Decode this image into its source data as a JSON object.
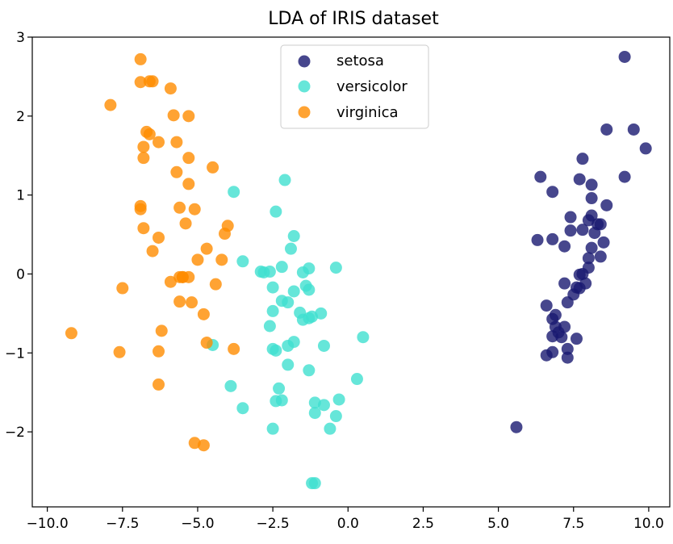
{
  "chart_data": {
    "type": "scatter",
    "title": "LDA of IRIS dataset",
    "xlabel": "",
    "ylabel": "",
    "xlim": [
      -10.5,
      10.7
    ],
    "ylim": [
      -2.95,
      3.0
    ],
    "xticks": [
      -10.0,
      -7.5,
      -5.0,
      -2.5,
      0.0,
      2.5,
      5.0,
      7.5,
      10.0
    ],
    "xtick_labels": [
      "−10.0",
      "−7.5",
      "−5.0",
      "−2.5",
      "0.0",
      "2.5",
      "5.0",
      "7.5",
      "10.0"
    ],
    "yticks": [
      -2,
      -1,
      0,
      1,
      2,
      3
    ],
    "ytick_labels": [
      "−2",
      "−1",
      "0",
      "1",
      "2",
      "3"
    ],
    "grid": false,
    "legend_position": "upper-center",
    "series": [
      {
        "name": "setosa",
        "color": "#191970",
        "points": [
          [
            9.2,
            2.75
          ],
          [
            8.6,
            1.83
          ],
          [
            9.5,
            1.83
          ],
          [
            9.9,
            1.59
          ],
          [
            9.2,
            1.23
          ],
          [
            7.8,
            1.46
          ],
          [
            6.4,
            1.23
          ],
          [
            7.7,
            1.2
          ],
          [
            8.1,
            1.13
          ],
          [
            6.8,
            1.04
          ],
          [
            8.1,
            0.96
          ],
          [
            8.6,
            0.87
          ],
          [
            7.4,
            0.72
          ],
          [
            8.0,
            0.68
          ],
          [
            8.1,
            0.74
          ],
          [
            8.3,
            0.63
          ],
          [
            8.4,
            0.63
          ],
          [
            7.8,
            0.56
          ],
          [
            8.2,
            0.52
          ],
          [
            7.4,
            0.55
          ],
          [
            6.3,
            0.43
          ],
          [
            6.8,
            0.44
          ],
          [
            7.2,
            0.35
          ],
          [
            8.5,
            0.4
          ],
          [
            8.1,
            0.33
          ],
          [
            8.0,
            0.2
          ],
          [
            8.4,
            0.22
          ],
          [
            8.0,
            0.08
          ],
          [
            7.7,
            -0.01
          ],
          [
            7.8,
            0.0
          ],
          [
            7.2,
            -0.12
          ],
          [
            7.6,
            -0.17
          ],
          [
            7.9,
            -0.12
          ],
          [
            7.5,
            -0.26
          ],
          [
            7.7,
            -0.18
          ],
          [
            7.3,
            -0.36
          ],
          [
            6.6,
            -0.4
          ],
          [
            6.9,
            -0.52
          ],
          [
            6.8,
            -0.57
          ],
          [
            6.9,
            -0.67
          ],
          [
            7.2,
            -0.67
          ],
          [
            7.0,
            -0.74
          ],
          [
            6.8,
            -0.79
          ],
          [
            7.6,
            -0.82
          ],
          [
            7.1,
            -0.8
          ],
          [
            7.3,
            -0.95
          ],
          [
            6.8,
            -0.99
          ],
          [
            6.6,
            -1.03
          ],
          [
            7.3,
            -1.06
          ],
          [
            5.6,
            -1.94
          ]
        ]
      },
      {
        "name": "versicolor",
        "color": "#40E0D0",
        "points": [
          [
            -2.1,
            1.19
          ],
          [
            -3.8,
            1.04
          ],
          [
            -2.4,
            0.79
          ],
          [
            -1.8,
            0.48
          ],
          [
            -1.9,
            0.32
          ],
          [
            -3.5,
            0.16
          ],
          [
            -2.8,
            0.02
          ],
          [
            -2.6,
            0.03
          ],
          [
            -2.2,
            0.09
          ],
          [
            -1.5,
            0.02
          ],
          [
            -1.3,
            0.07
          ],
          [
            -0.4,
            0.08
          ],
          [
            -2.5,
            -0.17
          ],
          [
            -1.8,
            -0.22
          ],
          [
            -1.4,
            -0.15
          ],
          [
            -1.3,
            -0.2
          ],
          [
            -2.2,
            -0.34
          ],
          [
            -2.0,
            -0.36
          ],
          [
            -2.5,
            -0.47
          ],
          [
            -1.6,
            -0.49
          ],
          [
            -1.5,
            -0.58
          ],
          [
            -1.3,
            -0.56
          ],
          [
            -1.2,
            -0.54
          ],
          [
            -0.9,
            -0.5
          ],
          [
            -2.6,
            -0.66
          ],
          [
            0.5,
            -0.8
          ],
          [
            -2.5,
            -0.95
          ],
          [
            -2.4,
            -0.97
          ],
          [
            -2.0,
            -0.91
          ],
          [
            -1.8,
            -0.86
          ],
          [
            -0.8,
            -0.91
          ],
          [
            -2.0,
            -1.15
          ],
          [
            -1.3,
            -1.22
          ],
          [
            -2.3,
            -1.45
          ],
          [
            0.3,
            -1.33
          ],
          [
            -3.9,
            -1.42
          ],
          [
            -2.2,
            -1.6
          ],
          [
            -2.4,
            -1.61
          ],
          [
            -1.1,
            -1.63
          ],
          [
            -0.8,
            -1.66
          ],
          [
            -0.3,
            -1.59
          ],
          [
            -3.5,
            -1.7
          ],
          [
            -1.1,
            -1.76
          ],
          [
            -0.4,
            -1.8
          ],
          [
            -2.5,
            -1.96
          ],
          [
            -0.6,
            -1.96
          ],
          [
            -1.2,
            -2.65
          ],
          [
            -1.1,
            -2.65
          ],
          [
            -4.5,
            -0.9
          ],
          [
            -2.9,
            0.03
          ]
        ]
      },
      {
        "name": "virginica",
        "color": "#FF8C00",
        "points": [
          [
            -6.9,
            2.72
          ],
          [
            -6.9,
            2.43
          ],
          [
            -6.6,
            2.44
          ],
          [
            -5.9,
            2.35
          ],
          [
            -7.9,
            2.14
          ],
          [
            -5.8,
            2.01
          ],
          [
            -5.3,
            2.0
          ],
          [
            -6.7,
            1.8
          ],
          [
            -6.6,
            1.77
          ],
          [
            -6.3,
            1.67
          ],
          [
            -5.7,
            1.67
          ],
          [
            -6.8,
            1.61
          ],
          [
            -6.8,
            1.47
          ],
          [
            -5.3,
            1.47
          ],
          [
            -5.7,
            1.29
          ],
          [
            -4.5,
            1.35
          ],
          [
            -5.3,
            1.14
          ],
          [
            -6.9,
            0.86
          ],
          [
            -6.9,
            0.82
          ],
          [
            -5.6,
            0.84
          ],
          [
            -5.1,
            0.82
          ],
          [
            -4.0,
            0.61
          ],
          [
            -5.4,
            0.64
          ],
          [
            -4.1,
            0.51
          ],
          [
            -6.8,
            0.58
          ],
          [
            -6.3,
            0.46
          ],
          [
            -4.7,
            0.32
          ],
          [
            -6.5,
            0.29
          ],
          [
            -5.0,
            0.18
          ],
          [
            -4.2,
            0.18
          ],
          [
            -5.5,
            -0.04
          ],
          [
            -5.3,
            -0.04
          ],
          [
            -5.6,
            -0.04
          ],
          [
            -5.9,
            -0.1
          ],
          [
            -4.4,
            -0.13
          ],
          [
            -7.5,
            -0.18
          ],
          [
            -5.6,
            -0.35
          ],
          [
            -5.2,
            -0.36
          ],
          [
            -4.8,
            -0.51
          ],
          [
            -6.2,
            -0.72
          ],
          [
            -9.2,
            -0.75
          ],
          [
            -4.7,
            -0.87
          ],
          [
            -3.8,
            -0.95
          ],
          [
            -7.6,
            -0.99
          ],
          [
            -6.3,
            -0.98
          ],
          [
            -6.3,
            -1.4
          ],
          [
            -5.1,
            -2.14
          ],
          [
            -4.8,
            -2.17
          ],
          [
            -6.5,
            2.44
          ],
          [
            -5.5,
            -0.04
          ]
        ]
      }
    ]
  }
}
